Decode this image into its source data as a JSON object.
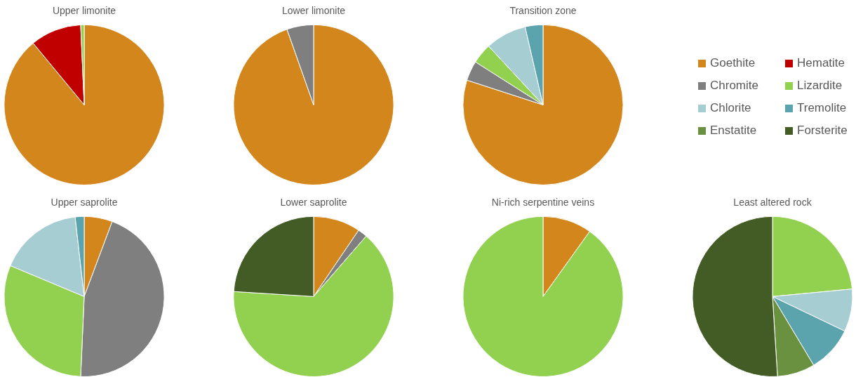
{
  "chart_data": [
    {
      "type": "pie",
      "title": "Upper limonite",
      "categories": [
        "Goethite",
        "Hematite",
        "Chromite",
        "Lizardite",
        "Chlorite",
        "Tremolite",
        "Enstatite",
        "Forsterite"
      ],
      "values": [
        89,
        10.3,
        0,
        0.7,
        0,
        0,
        0,
        0
      ],
      "colors": [
        "#d3861b",
        "#c00000",
        "#7f7f7f",
        "#92d050",
        "#a5cdd2",
        "#5ba3ad",
        "#6a9140",
        "#435c25"
      ],
      "legend": "top right"
    },
    {
      "type": "pie",
      "title": "Lower limonite",
      "categories": [
        null,
        null,
        null,
        null,
        null,
        null,
        null,
        null
      ],
      "values": [
        94.6,
        0,
        5.4,
        0,
        0,
        0,
        0,
        0
      ],
      "colors": [
        "#d3861b",
        "#c00000",
        "#7f7f7f",
        "#92d050",
        "#a5cdd2",
        "#5ba3ad",
        "#6a9140",
        "#435c25"
      ]
    },
    {
      "type": "pie",
      "title": "Transition zone",
      "categories": [
        null,
        null,
        null,
        null,
        null,
        null,
        null,
        null
      ],
      "values": [
        80,
        0,
        4,
        4.1,
        8.3,
        3.6,
        0,
        0
      ],
      "colors": [
        "#d3861b",
        "#c00000",
        "#7f7f7f",
        "#92d050",
        "#a5cdd2",
        "#5ba3ad",
        "#6a9140",
        "#435c25"
      ]
    },
    {
      "type": "pie",
      "title": "Upper saprolite",
      "categories": [
        null,
        null,
        null,
        null,
        null,
        null,
        null,
        null
      ],
      "values": [
        5.7,
        0,
        45,
        30.6,
        16.9,
        1.8,
        0,
        0
      ],
      "colors": [
        "#d3861b",
        "#c00000",
        "#7f7f7f",
        "#92d050",
        "#a5cdd2",
        "#5ba3ad",
        "#6a9140",
        "#435c25"
      ]
    },
    {
      "type": "pie",
      "title": "Lower saprolite",
      "categories": [
        null,
        null,
        null,
        null,
        null,
        null,
        null,
        null
      ],
      "values": [
        9.5,
        0,
        1.9,
        64.6,
        0,
        0,
        0,
        24
      ],
      "colors": [
        "#d3861b",
        "#c00000",
        "#7f7f7f",
        "#92d050",
        "#a5cdd2",
        "#5ba3ad",
        "#6a9140",
        "#435c25"
      ]
    },
    {
      "type": "pie",
      "title": "Ni-rich serpentine veins",
      "categories": [
        null,
        null,
        null,
        null,
        null,
        null,
        null,
        null
      ],
      "values": [
        9.9,
        0,
        0,
        90.1,
        0,
        0,
        0,
        0
      ],
      "colors": [
        "#d3861b",
        "#c00000",
        "#7f7f7f",
        "#92d050",
        "#a5cdd2",
        "#5ba3ad",
        "#6a9140",
        "#435c25"
      ]
    },
    {
      "type": "pie",
      "title": "Least altered rock",
      "categories": [
        null,
        null,
        null,
        null,
        null,
        null,
        null,
        null
      ],
      "values": [
        0,
        0,
        0,
        23.5,
        8.6,
        9.3,
        7.6,
        51
      ],
      "colors": [
        "#d3861b",
        "#c00000",
        "#7f7f7f",
        "#92d050",
        "#a5cdd2",
        "#5ba3ad",
        "#6a9140",
        "#435c25"
      ]
    }
  ]
}
